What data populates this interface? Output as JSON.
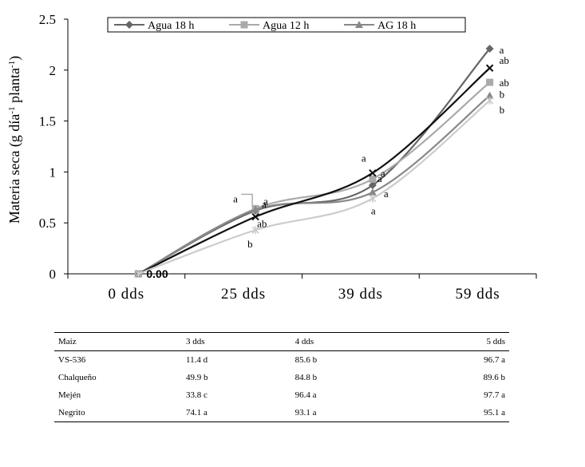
{
  "chart_data": {
    "type": "line",
    "ylabel": "Materia seca (g día-1 planta-1)",
    "ylabel_parts": {
      "a": "Materia seca (g día",
      "sup1": "-1",
      "b": " planta",
      "sup2": "-1",
      "c": ")"
    },
    "ylim": [
      0,
      2.5
    ],
    "yticks": [
      "0",
      "0.5",
      "1",
      "1.5",
      "2",
      "2.5"
    ],
    "ytick_values": [
      0,
      0.5,
      1,
      1.5,
      2,
      2.5
    ],
    "categories": [
      "0 dds",
      "25 dds",
      "39 dds",
      "59 dds"
    ],
    "grid": false,
    "legend_position": "top",
    "zero_label": "0.00",
    "series": [
      {
        "name": "Agua 18 h",
        "marker": "diamond",
        "color": "#666666",
        "legend": true,
        "values": [
          0,
          0.62,
          0.87,
          2.21
        ],
        "labels": [
          "",
          "a",
          "a",
          "a"
        ]
      },
      {
        "name": "Agua 12 h",
        "marker": "square",
        "color": "#aaaaaa",
        "legend": true,
        "values": [
          0,
          0.64,
          0.93,
          1.88
        ],
        "labels": [
          "",
          "a",
          "a",
          "ab"
        ]
      },
      {
        "name": "AG 18 h",
        "marker": "triangle",
        "color": "#888888",
        "legend": true,
        "values": [
          0,
          0.63,
          0.8,
          1.75
        ],
        "labels": [
          "",
          "a",
          "a",
          "b"
        ]
      },
      {
        "marker": "x",
        "color": "#111111",
        "legend": false,
        "values": [
          0,
          0.56,
          0.99,
          2.02
        ],
        "labels": [
          "",
          "ab",
          "a",
          "ab"
        ]
      },
      {
        "marker": "star",
        "color": "#cccccc",
        "legend": false,
        "values": [
          0,
          0.43,
          0.74,
          1.7
        ],
        "labels": [
          "",
          "b",
          "a",
          "b"
        ]
      }
    ]
  },
  "table": {
    "headers": [
      "Maíz",
      "3 dds",
      "4 dds",
      "5 dds"
    ],
    "rows": [
      [
        "VS-536",
        "11.4 d",
        "85.6 b",
        "96.7 a"
      ],
      [
        "Chalqueño",
        "49.9 b",
        "84.8 b",
        "89.6 b"
      ],
      [
        "Mején",
        "33.8 c",
        "96.4 a",
        "97.7 a"
      ],
      [
        "Negrito",
        "74.1 a",
        "93.1 a",
        "95.1 a"
      ]
    ]
  }
}
